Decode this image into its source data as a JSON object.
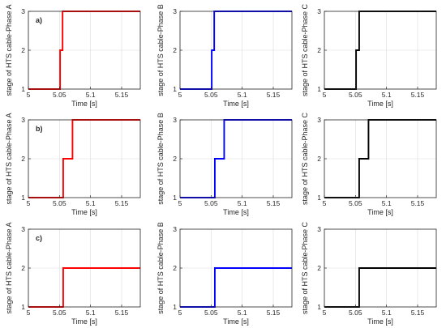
{
  "chart_data": [
    {
      "type": "line",
      "panel_label": "a)",
      "xlabel": "Time [s]",
      "ylabel": "stage of HTS cable-Phase A",
      "xlim": [
        5,
        5.18
      ],
      "ylim": [
        1,
        3
      ],
      "xticks": [
        5,
        5.05,
        5.1,
        5.15
      ],
      "xtick_labels": [
        "5",
        "5.05",
        "5.1",
        "5.15"
      ],
      "yticks": [
        1,
        2,
        3
      ],
      "ytick_labels": [
        "1",
        "2",
        "3"
      ],
      "grid": true,
      "color": "#ff0000",
      "x": [
        5.0,
        5.051,
        5.051,
        5.055,
        5.055,
        5.18
      ],
      "y": [
        1,
        1,
        2,
        2,
        3,
        3
      ]
    },
    {
      "type": "line",
      "panel_label": "",
      "xlabel": "Time [s]",
      "ylabel": "stage of HTS cable-Phase B",
      "xlim": [
        5,
        5.18
      ],
      "ylim": [
        1,
        3
      ],
      "xticks": [
        5,
        5.05,
        5.1,
        5.15
      ],
      "xtick_labels": [
        "5",
        "5.05",
        "5.1",
        "5.15"
      ],
      "yticks": [
        1,
        2,
        3
      ],
      "ytick_labels": [
        "1",
        "2",
        "3"
      ],
      "grid": true,
      "color": "#0000ff",
      "x": [
        5.0,
        5.051,
        5.051,
        5.055,
        5.055,
        5.18
      ],
      "y": [
        1,
        1,
        2,
        2,
        3,
        3
      ]
    },
    {
      "type": "line",
      "panel_label": "",
      "xlabel": "Time [s]",
      "ylabel": "stage of HTS cable-Phase C",
      "xlim": [
        5,
        5.18
      ],
      "ylim": [
        1,
        3
      ],
      "xticks": [
        5,
        5.05,
        5.1,
        5.15
      ],
      "xtick_labels": [
        "5",
        "5.05",
        "5.1",
        "5.15"
      ],
      "yticks": [
        1,
        2,
        3
      ],
      "ytick_labels": [
        "1",
        "2",
        "3"
      ],
      "grid": true,
      "color": "#000000",
      "x": [
        5.0,
        5.051,
        5.051,
        5.056,
        5.056,
        5.18
      ],
      "y": [
        1,
        1,
        2,
        2,
        3,
        3
      ]
    },
    {
      "type": "line",
      "panel_label": "b)",
      "xlabel": "Time [s]",
      "ylabel": "stage of HTS cable-Phase A",
      "xlim": [
        5,
        5.18
      ],
      "ylim": [
        1,
        3
      ],
      "xticks": [
        5,
        5.05,
        5.1,
        5.15
      ],
      "xtick_labels": [
        "5",
        "5.05",
        "5.1",
        "5.15"
      ],
      "yticks": [
        1,
        2,
        3
      ],
      "ytick_labels": [
        "1",
        "2",
        "3"
      ],
      "grid": true,
      "color": "#ff0000",
      "x": [
        5.0,
        5.056,
        5.056,
        5.071,
        5.071,
        5.18
      ],
      "y": [
        1,
        1,
        2,
        2,
        3,
        3
      ]
    },
    {
      "type": "line",
      "panel_label": "",
      "xlabel": "Time [s]",
      "ylabel": "stage of HTS cable-Phase B",
      "xlim": [
        5,
        5.18
      ],
      "ylim": [
        1,
        3
      ],
      "xticks": [
        5,
        5.05,
        5.1,
        5.15
      ],
      "xtick_labels": [
        "5",
        "5.05",
        "5.1",
        "5.15"
      ],
      "yticks": [
        1,
        2,
        3
      ],
      "ytick_labels": [
        "1",
        "2",
        "3"
      ],
      "grid": true,
      "color": "#0000ff",
      "x": [
        5.0,
        5.056,
        5.056,
        5.071,
        5.071,
        5.18
      ],
      "y": [
        1,
        1,
        2,
        2,
        3,
        3
      ]
    },
    {
      "type": "line",
      "panel_label": "",
      "xlabel": "Time [s]",
      "ylabel": "stage of HTS cable-Phase C",
      "xlim": [
        5,
        5.18
      ],
      "ylim": [
        1,
        3
      ],
      "xticks": [
        5,
        5.05,
        5.1,
        5.15
      ],
      "xtick_labels": [
        "5",
        "5.05",
        "5.1",
        "5.15"
      ],
      "yticks": [
        1,
        2,
        3
      ],
      "ytick_labels": [
        "1",
        "2",
        "3"
      ],
      "grid": true,
      "color": "#000000",
      "x": [
        5.0,
        5.056,
        5.056,
        5.071,
        5.071,
        5.18
      ],
      "y": [
        1,
        1,
        2,
        2,
        3,
        3
      ]
    },
    {
      "type": "line",
      "panel_label": "c)",
      "xlabel": "Time [s]",
      "ylabel": "stage of HTS cable-Phase A",
      "xlim": [
        5,
        5.18
      ],
      "ylim": [
        1,
        3
      ],
      "xticks": [
        5,
        5.05,
        5.1,
        5.15
      ],
      "xtick_labels": [
        "5",
        "5.05",
        "5.1",
        "5.15"
      ],
      "yticks": [
        1,
        2,
        3
      ],
      "ytick_labels": [
        "1",
        "2",
        "3"
      ],
      "grid": true,
      "color": "#ff0000",
      "x": [
        5.0,
        5.056,
        5.056,
        5.18
      ],
      "y": [
        1,
        1,
        2,
        2
      ]
    },
    {
      "type": "line",
      "panel_label": "",
      "xlabel": "Time [s]",
      "ylabel": "stage of HTS cable-Phase B",
      "xlim": [
        5,
        5.18
      ],
      "ylim": [
        1,
        3
      ],
      "xticks": [
        5,
        5.05,
        5.1,
        5.15
      ],
      "xtick_labels": [
        "5",
        "5.05",
        "5.1",
        "5.15"
      ],
      "yticks": [
        1,
        2,
        3
      ],
      "ytick_labels": [
        "1",
        "2",
        "3"
      ],
      "grid": true,
      "color": "#0000ff",
      "x": [
        5.0,
        5.056,
        5.056,
        5.18
      ],
      "y": [
        1,
        1,
        2,
        2
      ]
    },
    {
      "type": "line",
      "panel_label": "",
      "xlabel": "Time [s]",
      "ylabel": "stage of HTS cable-Phase C",
      "xlim": [
        5,
        5.18
      ],
      "ylim": [
        1,
        3
      ],
      "xticks": [
        5,
        5.05,
        5.1,
        5.15
      ],
      "xtick_labels": [
        "5",
        "5.05",
        "5.1",
        "5.15"
      ],
      "yticks": [
        1,
        2,
        3
      ],
      "ytick_labels": [
        "1",
        "2",
        "3"
      ],
      "grid": true,
      "color": "#000000",
      "x": [
        5.0,
        5.056,
        5.056,
        5.18
      ],
      "y": [
        1,
        1,
        2,
        2
      ]
    }
  ]
}
